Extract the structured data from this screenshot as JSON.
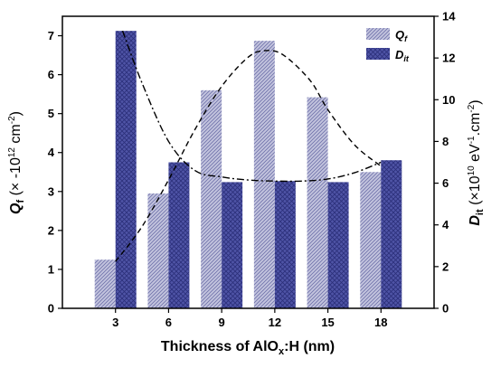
{
  "chart_data": {
    "type": "bar",
    "categories": [
      "3",
      "6",
      "9",
      "12",
      "15",
      "18"
    ],
    "xlabel": {
      "main": "Thickness of AlO",
      "sub": "x",
      "rest": ":H (nm)"
    },
    "ylabel_left": {
      "q": "Q",
      "sub": "f",
      "rest": " (× -10",
      "sup": "12",
      "rest2": " cm",
      "sup2": "-2",
      "rest3": ")"
    },
    "ylabel_right": {
      "d": "D",
      "sub": "it",
      "rest": " (×10",
      "sup": "10",
      "rest2": " eV",
      "sup2": "-1",
      "rest3": ".cm",
      "sup3": "-2",
      "rest4": ")"
    },
    "ylim_left": [
      0,
      7.5
    ],
    "ylim_right": [
      0,
      14
    ],
    "yticks_left": [
      "0",
      "1",
      "2",
      "3",
      "4",
      "5",
      "6",
      "7"
    ],
    "yticks_right": [
      "0",
      "2",
      "4",
      "6",
      "8",
      "10",
      "12",
      "14"
    ],
    "series": [
      {
        "name": "Qf",
        "label_main": "Q",
        "label_sub": "f",
        "axis": "left",
        "color": "#a7a8cc",
        "pattern": "diagonal-hatch",
        "values": [
          1.25,
          2.95,
          5.6,
          6.87,
          5.42,
          3.5
        ]
      },
      {
        "name": "Dit",
        "label_main": "D",
        "label_sub": "it",
        "axis": "right",
        "color": "#4a4fa0",
        "pattern": "cross-hatch",
        "values": [
          13.3,
          7.0,
          6.05,
          6.1,
          6.05,
          7.1
        ]
      }
    ],
    "fit_curves": [
      {
        "series": "Qf",
        "style": "dashed",
        "axis": "left",
        "x": [
          3,
          4.5,
          6,
          7.5,
          9,
          10.5,
          11.5,
          12.5,
          14,
          15,
          16.5,
          18
        ],
        "y": [
          1.2,
          2.1,
          3.3,
          4.6,
          5.7,
          6.45,
          6.62,
          6.5,
          5.85,
          5.1,
          4.2,
          3.65
        ]
      },
      {
        "series": "Dit",
        "style": "dash-dot",
        "axis": "right",
        "x": [
          3.4,
          4.5,
          6,
          7.5,
          9,
          10.5,
          12,
          13.5,
          15,
          16.5,
          18
        ],
        "y": [
          13.3,
          10.8,
          8.0,
          6.6,
          6.3,
          6.15,
          6.1,
          6.1,
          6.2,
          6.5,
          7.0
        ]
      }
    ],
    "legend_position": "top-right",
    "grid": false
  }
}
